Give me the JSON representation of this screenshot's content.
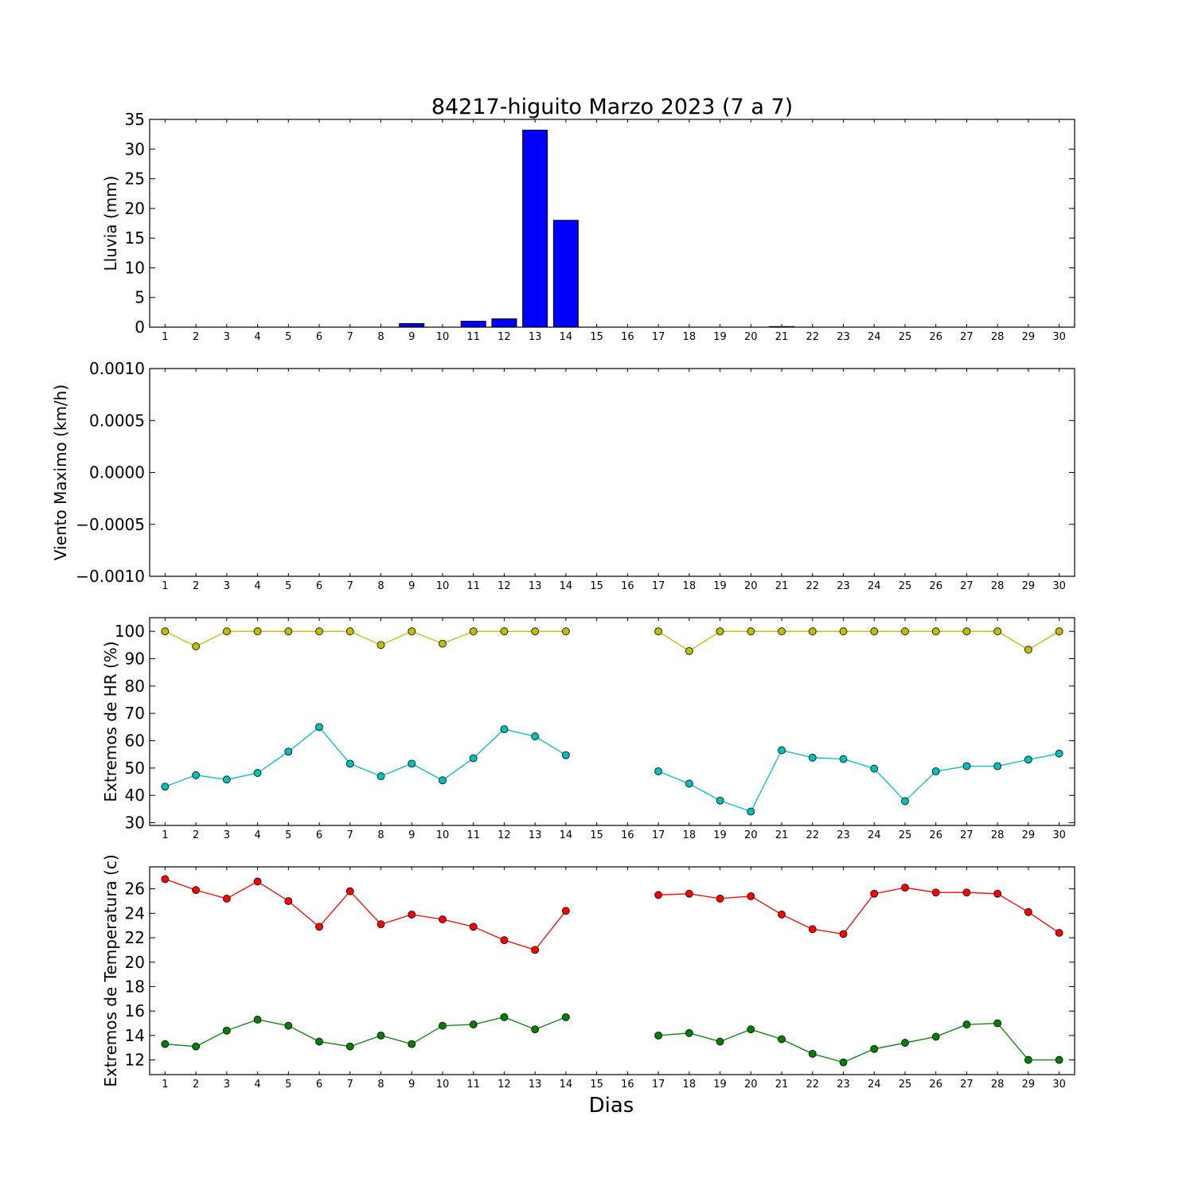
{
  "figure": {
    "title": "84217-higuito Marzo 2023  (7 a 7)",
    "xlabel": "Dias"
  },
  "chart_data": [
    {
      "type": "bar",
      "title": "",
      "xlabel": "",
      "ylabel": "Lluvia (mm)",
      "x": [
        1,
        2,
        3,
        4,
        5,
        6,
        7,
        8,
        9,
        10,
        11,
        12,
        13,
        14,
        15,
        16,
        17,
        18,
        19,
        20,
        21,
        22,
        23,
        24,
        25,
        26,
        27,
        28,
        29,
        30
      ],
      "values": [
        0,
        0,
        0,
        0,
        0,
        0,
        0,
        0,
        0.6,
        0,
        1.0,
        1.4,
        33.2,
        18.0,
        0,
        0,
        0,
        0,
        0,
        0,
        0.1,
        0,
        0,
        0,
        0,
        0,
        0,
        0,
        0,
        0
      ],
      "ylim": [
        0,
        35
      ],
      "yticks": [
        "0",
        "5",
        "10",
        "15",
        "20",
        "25",
        "30",
        "35"
      ],
      "xlim": [
        0.5,
        30.5
      ],
      "color": "#0000ff",
      "grid": false
    },
    {
      "type": "line",
      "title": "",
      "xlabel": "",
      "ylabel": "Viento Maximo (km/h)",
      "x": [
        1,
        2,
        3,
        4,
        5,
        6,
        7,
        8,
        9,
        10,
        11,
        12,
        13,
        14,
        15,
        16,
        17,
        18,
        19,
        20,
        21,
        22,
        23,
        24,
        25,
        26,
        27,
        28,
        29,
        30
      ],
      "series": [],
      "ylim": [
        -0.001,
        0.001
      ],
      "yticks": [
        "0.0010",
        "0.0005",
        "0.0000",
        "−0.0005",
        "−0.0010"
      ],
      "xlim": [
        0.5,
        30.5
      ],
      "grid": false
    },
    {
      "type": "line",
      "title": "",
      "xlabel": "",
      "ylabel": "Extremos de HR (%)",
      "x": [
        1,
        2,
        3,
        4,
        5,
        6,
        7,
        8,
        9,
        10,
        11,
        12,
        13,
        14,
        15,
        16,
        17,
        18,
        19,
        20,
        21,
        22,
        23,
        24,
        25,
        26,
        27,
        28,
        29,
        30
      ],
      "series": [
        {
          "color": "#bfbf00",
          "values": [
            100,
            94.5,
            100,
            100,
            100,
            100,
            100,
            95,
            100,
            95.5,
            100,
            100,
            100,
            100,
            null,
            null,
            100,
            92.8,
            100,
            100,
            100,
            100,
            100,
            100,
            100,
            100,
            100,
            100,
            93.3,
            100
          ]
        },
        {
          "color": "#00bfbf",
          "values": [
            43.2,
            47.4,
            45.8,
            48.2,
            56,
            65,
            51.6,
            47,
            51.6,
            45.5,
            53.6,
            64.2,
            61.6,
            54.7,
            null,
            null,
            48.8,
            44.3,
            38.1,
            34.1,
            56.5,
            53.8,
            53.3,
            49.8,
            37.9,
            48.8,
            50.7,
            50.7,
            53.1,
            55.3
          ]
        }
      ],
      "ylim": [
        29,
        105
      ],
      "yticks": [
        "30",
        "40",
        "50",
        "60",
        "70",
        "80",
        "90",
        "100"
      ],
      "xlim": [
        0.5,
        30.5
      ],
      "grid": false
    },
    {
      "type": "line",
      "title": "",
      "xlabel": "Dias",
      "ylabel": "Extremos de Temperatura (c)",
      "x": [
        1,
        2,
        3,
        4,
        5,
        6,
        7,
        8,
        9,
        10,
        11,
        12,
        13,
        14,
        15,
        16,
        17,
        18,
        19,
        20,
        21,
        22,
        23,
        24,
        25,
        26,
        27,
        28,
        29,
        30
      ],
      "series": [
        {
          "color": "#ff0000",
          "values": [
            26.8,
            25.9,
            25.2,
            26.6,
            25.0,
            22.9,
            25.8,
            23.1,
            23.9,
            23.5,
            22.9,
            21.8,
            21.0,
            24.2,
            null,
            null,
            25.5,
            25.6,
            25.2,
            25.4,
            23.9,
            22.7,
            22.3,
            25.6,
            26.1,
            25.7,
            25.7,
            25.6,
            24.1,
            22.4
          ]
        },
        {
          "color": "#008000",
          "values": [
            13.3,
            13.1,
            14.4,
            15.3,
            14.8,
            13.5,
            13.1,
            14.0,
            13.3,
            14.8,
            14.9,
            15.5,
            14.5,
            15.5,
            null,
            null,
            14.0,
            14.2,
            13.5,
            14.5,
            13.7,
            12.5,
            11.8,
            12.9,
            13.4,
            13.9,
            14.9,
            15.0,
            12.0,
            12.0
          ]
        }
      ],
      "ylim": [
        10.8,
        27.8
      ],
      "yticks": [
        "12",
        "14",
        "16",
        "18",
        "20",
        "22",
        "24",
        "26"
      ],
      "xlim": [
        0.5,
        30.5
      ],
      "grid": false
    }
  ]
}
